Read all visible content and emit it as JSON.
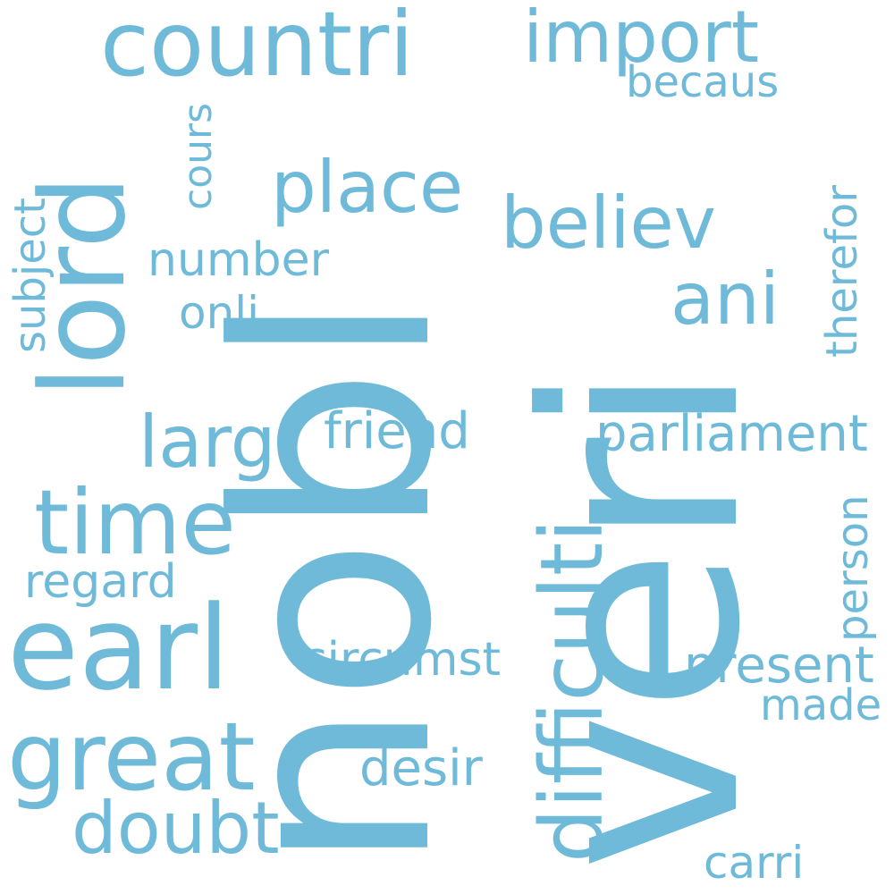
{
  "style": {
    "text_color": "#6fbad8",
    "background": "#ffffff"
  },
  "words": [
    {
      "text": "nobl",
      "orientation": "vertical"
    },
    {
      "text": "veri",
      "orientation": "vertical"
    },
    {
      "text": "countri",
      "orientation": "horizontal"
    },
    {
      "text": "import",
      "orientation": "horizontal"
    },
    {
      "text": "lord",
      "orientation": "vertical"
    },
    {
      "text": "becaus",
      "orientation": "horizontal"
    },
    {
      "text": "cours",
      "orientation": "vertical"
    },
    {
      "text": "place",
      "orientation": "horizontal"
    },
    {
      "text": "believ",
      "orientation": "horizontal"
    },
    {
      "text": "therefor",
      "orientation": "vertical"
    },
    {
      "text": "subject",
      "orientation": "vertical"
    },
    {
      "text": "number",
      "orientation": "horizontal"
    },
    {
      "text": "ani",
      "orientation": "horizontal"
    },
    {
      "text": "onli",
      "orientation": "horizontal"
    },
    {
      "text": "difficulti",
      "orientation": "vertical"
    },
    {
      "text": "larg",
      "orientation": "horizontal"
    },
    {
      "text": "friend",
      "orientation": "horizontal"
    },
    {
      "text": "parliament",
      "orientation": "horizontal"
    },
    {
      "text": "time",
      "orientation": "horizontal"
    },
    {
      "text": "person",
      "orientation": "vertical"
    },
    {
      "text": "regard",
      "orientation": "horizontal"
    },
    {
      "text": "earl",
      "orientation": "horizontal"
    },
    {
      "text": "circumst",
      "orientation": "horizontal"
    },
    {
      "text": "present",
      "orientation": "horizontal"
    },
    {
      "text": "made",
      "orientation": "horizontal"
    },
    {
      "text": "great",
      "orientation": "horizontal"
    },
    {
      "text": "desir",
      "orientation": "horizontal"
    },
    {
      "text": "doubt",
      "orientation": "horizontal"
    },
    {
      "text": "carri",
      "orientation": "horizontal"
    }
  ]
}
